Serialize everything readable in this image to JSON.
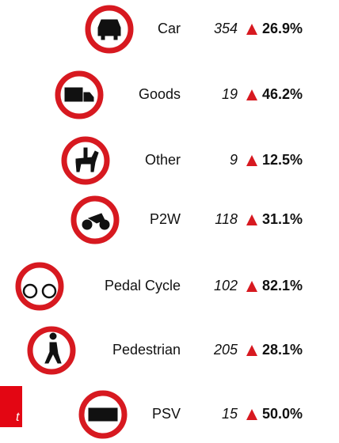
{
  "rows": [
    {
      "label": "Car",
      "count": "354",
      "change": "26.9%"
    },
    {
      "label": "Goods",
      "count": "19",
      "change": "46.2%"
    },
    {
      "label": "Other",
      "count": "9",
      "change": "12.5%"
    },
    {
      "label": "P2W",
      "count": "118",
      "change": "31.1%"
    },
    {
      "label": "Pedal Cycle",
      "count": "102",
      "change": "82.1%"
    },
    {
      "label": "Pedestrian",
      "count": "205",
      "change": "28.1%"
    },
    {
      "label": "PSV",
      "count": "15",
      "change": "50.0%"
    }
  ],
  "fragment": "t"
}
